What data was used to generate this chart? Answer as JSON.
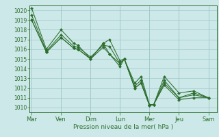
{
  "title": "Pression niveau de la mer( hPa )",
  "bg_color": "#cce8e8",
  "grid_color": "#a0c8c8",
  "line_color": "#2d6e2d",
  "ylim": [
    1009.5,
    1020.5
  ],
  "yticks": [
    1010,
    1011,
    1012,
    1013,
    1014,
    1015,
    1016,
    1017,
    1018,
    1019,
    1020
  ],
  "day_labels": [
    "Mar",
    "Ven",
    "Dim",
    "Lun",
    "Mer",
    "Jeu",
    "Sam"
  ],
  "day_positions": [
    0,
    14,
    28,
    42,
    56,
    70,
    84
  ],
  "xlim": [
    -1,
    88
  ],
  "series": [
    {
      "x": [
        0,
        7,
        14,
        20,
        22,
        28,
        34,
        37,
        42,
        44,
        49,
        52,
        56,
        58,
        63,
        70,
        77,
        84
      ],
      "y": [
        1020.2,
        1016.0,
        1018.0,
        1016.6,
        1016.4,
        1015.0,
        1016.6,
        1017.0,
        1014.8,
        1015.0,
        1012.5,
        1013.2,
        1010.3,
        1010.3,
        1013.2,
        1011.5,
        1011.7,
        1011.0
      ]
    },
    {
      "x": [
        0,
        7,
        14,
        20,
        22,
        28,
        34,
        37,
        42,
        44,
        49,
        52,
        56,
        58,
        63,
        70,
        77,
        84
      ],
      "y": [
        1019.5,
        1015.8,
        1017.5,
        1016.3,
        1016.2,
        1015.2,
        1016.4,
        1016.3,
        1014.5,
        1015.0,
        1012.2,
        1012.8,
        1010.3,
        1010.3,
        1012.8,
        1011.0,
        1011.5,
        1011.0
      ]
    },
    {
      "x": [
        0,
        7,
        14,
        20,
        22,
        28,
        34,
        37,
        42,
        44,
        49,
        52,
        56,
        58,
        63,
        70,
        77,
        84
      ],
      "y": [
        1019.0,
        1015.7,
        1017.2,
        1016.1,
        1016.0,
        1015.0,
        1016.2,
        1015.5,
        1014.5,
        1015.0,
        1012.0,
        1012.5,
        1010.2,
        1010.3,
        1012.5,
        1011.0,
        1011.3,
        1011.0
      ]
    },
    {
      "x": [
        0,
        7,
        14,
        20,
        22,
        28,
        34,
        37,
        42,
        44,
        49,
        52,
        56,
        58,
        63,
        70,
        77,
        84
      ],
      "y": [
        1019.0,
        1015.7,
        1017.2,
        1016.1,
        1016.0,
        1015.0,
        1016.6,
        1015.5,
        1014.2,
        1015.0,
        1012.0,
        1012.5,
        1010.2,
        1010.3,
        1012.3,
        1010.8,
        1011.0,
        1011.0
      ]
    }
  ],
  "marker_size": 2.2,
  "linewidth": 0.75,
  "title_fontsize": 6.5,
  "tick_fontsize": 5.5,
  "xlabel_fontsize": 6.5
}
